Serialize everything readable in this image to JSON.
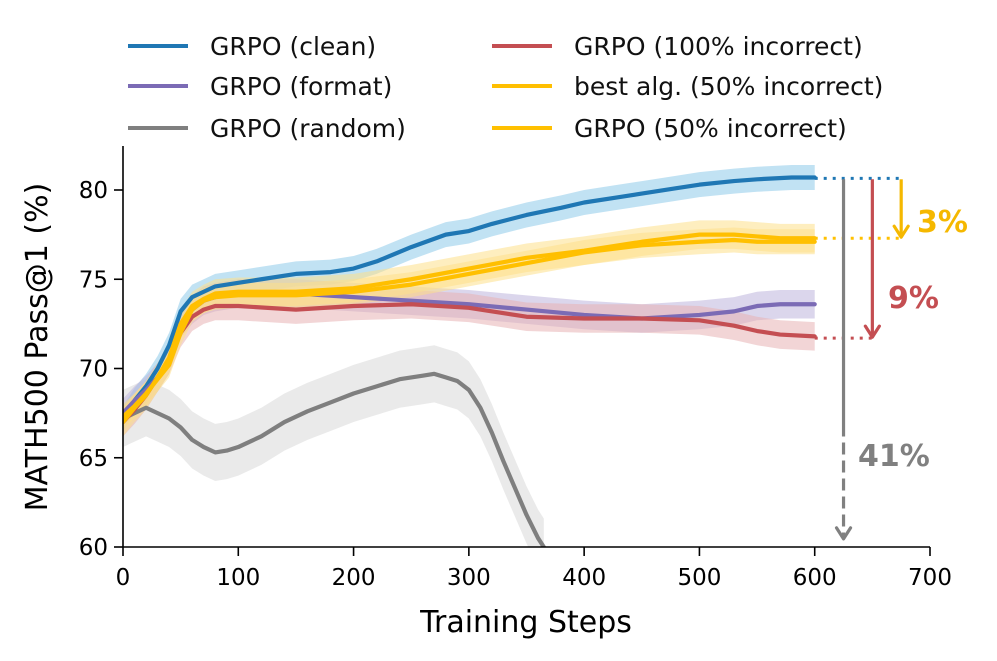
{
  "chart_data": {
    "type": "line",
    "xlabel": "Training Steps",
    "ylabel": "MATH500 Pass@1 (%)",
    "xlim": [
      0,
      700
    ],
    "ylim": [
      60,
      82.5
    ],
    "xticks": [
      0,
      100,
      200,
      300,
      400,
      500,
      600,
      700
    ],
    "yticks": [
      60,
      65,
      70,
      75,
      80
    ],
    "legend_position": "top",
    "series": [
      {
        "name": "GRPO (clean)",
        "color": "#1f77b4",
        "band": "#8ecbea",
        "x": [
          0,
          10,
          20,
          30,
          40,
          50,
          60,
          70,
          80,
          100,
          120,
          150,
          180,
          200,
          220,
          250,
          280,
          300,
          320,
          350,
          380,
          400,
          430,
          450,
          480,
          500,
          530,
          550,
          580,
          600
        ],
        "y": [
          67.2,
          68.2,
          69,
          70,
          71.3,
          73.2,
          74,
          74.3,
          74.6,
          74.8,
          75,
          75.3,
          75.4,
          75.6,
          76,
          76.8,
          77.5,
          77.7,
          78.1,
          78.6,
          79,
          79.3,
          79.6,
          79.8,
          80.1,
          80.3,
          80.5,
          80.6,
          80.7,
          80.7
        ]
      },
      {
        "name": "GRPO (format)",
        "color": "#7b6bb5",
        "band": "#bdb5dd",
        "x": [
          0,
          10,
          20,
          30,
          40,
          50,
          60,
          70,
          80,
          100,
          150,
          200,
          250,
          300,
          350,
          400,
          450,
          500,
          530,
          550,
          570,
          600
        ],
        "y": [
          67.5,
          68.2,
          68.8,
          69.5,
          70.5,
          72.5,
          73.3,
          73.8,
          74,
          74.2,
          74.2,
          74,
          73.8,
          73.6,
          73.3,
          73,
          72.8,
          73,
          73.2,
          73.5,
          73.6,
          73.6
        ]
      },
      {
        "name": "GRPO (random)",
        "color": "#7f7f7f",
        "band": "#d9d9d9",
        "x": [
          0,
          10,
          20,
          30,
          40,
          50,
          60,
          70,
          80,
          90,
          100,
          110,
          120,
          140,
          160,
          180,
          200,
          220,
          240,
          260,
          270,
          280,
          290,
          300,
          310,
          320,
          330,
          340,
          350,
          360,
          365
        ],
        "y": [
          67.2,
          67.5,
          67.8,
          67.5,
          67.2,
          66.7,
          66,
          65.6,
          65.3,
          65.4,
          65.6,
          65.9,
          66.2,
          67,
          67.6,
          68.1,
          68.6,
          69,
          69.4,
          69.6,
          69.7,
          69.5,
          69.3,
          68.8,
          67.8,
          66.4,
          64.8,
          63.3,
          61.8,
          60.5,
          60
        ]
      },
      {
        "name": "GRPO (100% incorrect)",
        "color": "#c44e52",
        "band": "#e7b3b5",
        "x": [
          0,
          10,
          20,
          30,
          40,
          50,
          60,
          70,
          80,
          100,
          150,
          200,
          250,
          300,
          350,
          400,
          450,
          500,
          530,
          550,
          570,
          600
        ],
        "y": [
          67,
          67.7,
          68.5,
          69.5,
          70.5,
          72,
          72.9,
          73.3,
          73.5,
          73.5,
          73.3,
          73.5,
          73.6,
          73.4,
          72.9,
          72.8,
          72.8,
          72.7,
          72.4,
          72.1,
          71.9,
          71.8
        ]
      },
      {
        "name": "best alg. (50% incorrect)",
        "color": "#ffbf00",
        "band": "#fde08a",
        "x": [
          0,
          10,
          20,
          30,
          40,
          50,
          60,
          70,
          80,
          100,
          150,
          200,
          250,
          300,
          350,
          400,
          450,
          500,
          530,
          550,
          570,
          600
        ],
        "y": [
          67,
          67.8,
          68.5,
          69.5,
          70.6,
          72.5,
          73.5,
          73.9,
          74.2,
          74.3,
          74.3,
          74.5,
          75,
          75.6,
          76.2,
          76.6,
          77.1,
          77.5,
          77.5,
          77.4,
          77.3,
          77.3
        ]
      },
      {
        "name": "GRPO (50% incorrect)",
        "color": "#ffc000",
        "band": "#fde08a",
        "x": [
          0,
          10,
          20,
          30,
          40,
          50,
          60,
          70,
          80,
          100,
          150,
          200,
          250,
          300,
          350,
          400,
          450,
          500,
          530,
          550,
          570,
          600
        ],
        "y": [
          67.3,
          67.9,
          68.6,
          69.4,
          70.2,
          72,
          73.3,
          73.8,
          74,
          74.1,
          74.1,
          74.3,
          74.7,
          75.3,
          75.9,
          76.5,
          76.9,
          77.1,
          77.2,
          77.1,
          77.1,
          77.1
        ]
      }
    ],
    "annotations": [
      {
        "text": "3%",
        "color": "#f5b800",
        "from_y": 80.6,
        "to_y": 77.3
      },
      {
        "text": "9%",
        "color": "#c44e52",
        "from_y": 80.6,
        "to_y": 71.7
      },
      {
        "text": "41%",
        "color": "#808080",
        "from_y": 80.6,
        "to_y": 60.4
      }
    ]
  }
}
